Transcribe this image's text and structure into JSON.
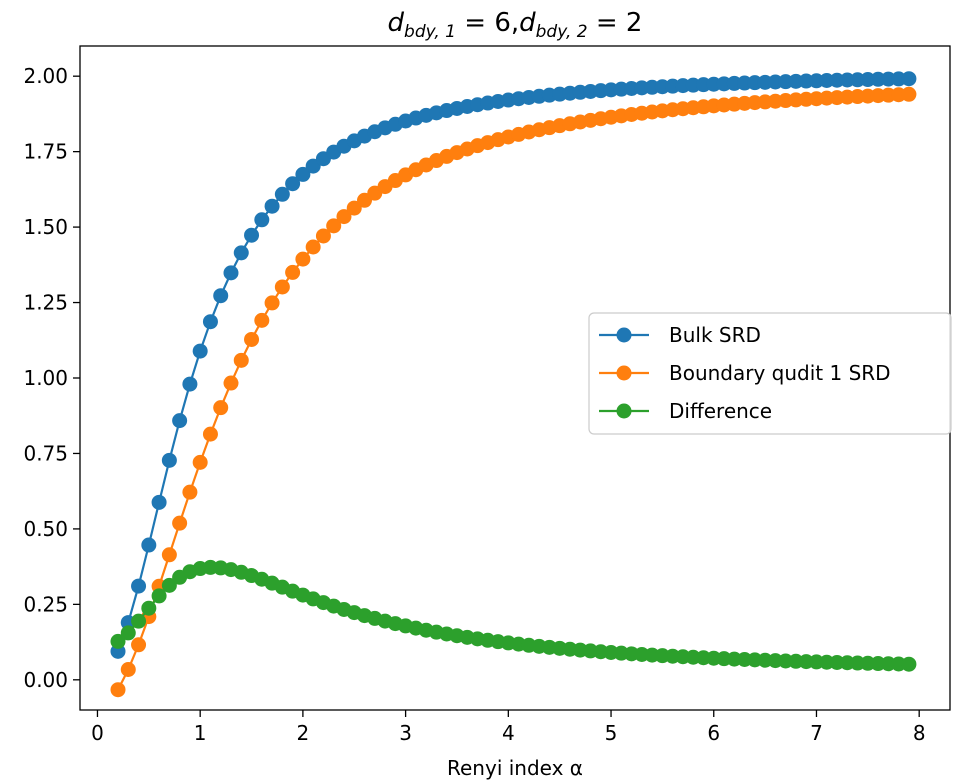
{
  "chart_data": {
    "type": "line",
    "title": "d_{bdy,1} = 6, d_{bdy,2} = 2",
    "title_parts": {
      "d1_sub": "bdy, 1",
      "d1_value": "6",
      "d2_sub": "bdy, 2",
      "d2_value": "2"
    },
    "xlabel": "Renyi index α",
    "ylabel": "",
    "xlim": [
      -0.17,
      8.3
    ],
    "ylim": [
      -0.1,
      2.1
    ],
    "xticks": [
      0,
      1,
      2,
      3,
      4,
      5,
      6,
      7,
      8
    ],
    "yticks": [
      0.0,
      0.25,
      0.5,
      0.75,
      1.0,
      1.25,
      1.5,
      1.75,
      2.0
    ],
    "ytick_labels": [
      "0.00",
      "0.25",
      "0.50",
      "0.75",
      "1.00",
      "1.25",
      "1.50",
      "1.75",
      "2.00"
    ],
    "x_range": {
      "start": 0.2,
      "end": 7.94,
      "step": 0.1
    },
    "legend_position": "center-right",
    "grid": false,
    "series": [
      {
        "name": "Bulk SRD",
        "color": "#1f77b4",
        "marker": "circle"
      },
      {
        "name": "Boundary qudit 1 SRD",
        "color": "#ff7f0e",
        "marker": "circle"
      },
      {
        "name": "Difference",
        "color": "#2ca02c",
        "marker": "circle"
      }
    ],
    "params": {
      "d_bdy_1": 6,
      "d_bdy_2": 2
    }
  }
}
